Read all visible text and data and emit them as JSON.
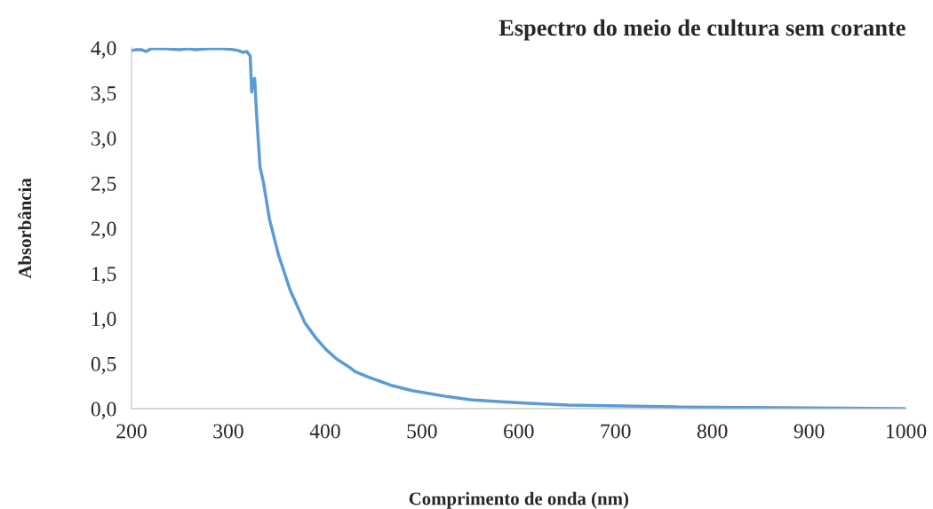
{
  "chart_data": {
    "type": "line",
    "title": "Espectro do meio de cultura sem corante",
    "xlabel": "Comprimento de onda (nm)",
    "ylabel": "Absorbância",
    "series": [
      {
        "color": "#5b9bd5",
        "x": [
          200,
          205,
          210,
          215,
          220,
          235,
          250,
          258,
          265,
          280,
          295,
          305,
          310,
          315,
          319,
          322.6,
          324.1,
          325.5,
          327.2,
          329.4,
          332.7,
          336.4,
          342.5,
          351.7,
          364,
          379.2,
          390,
          400.6,
          412,
          425,
          431,
          445,
          467.9,
          490,
          523,
          550,
          578,
          610,
          651,
          761,
          872,
          1000
        ],
        "values": [
          3.97,
          3.98,
          3.98,
          3.96,
          3.99,
          3.99,
          3.98,
          3.99,
          3.98,
          3.99,
          3.99,
          3.98,
          3.97,
          3.95,
          3.96,
          3.91,
          3.51,
          3.65,
          3.66,
          3.22,
          2.68,
          2.5,
          2.1,
          1.71,
          1.31,
          0.95,
          0.79,
          0.66,
          0.55,
          0.46,
          0.41,
          0.35,
          0.26,
          0.2,
          0.14,
          0.1,
          0.08,
          0.06,
          0.04,
          0.02,
          0.01,
          0.0
        ]
      }
    ],
    "xlim": [
      200,
      1000
    ],
    "xticks": [
      200,
      300,
      400,
      500,
      600,
      700,
      800,
      900,
      1000
    ],
    "ylim": [
      0,
      4
    ],
    "yticks": [
      {
        "value": 0,
        "label": "0,0"
      },
      {
        "value": 0.5,
        "label": "0,5"
      },
      {
        "value": 1,
        "label": "1,0"
      },
      {
        "value": 1.5,
        "label": "1,5"
      },
      {
        "value": 2,
        "label": "2,0"
      },
      {
        "value": 2.5,
        "label": "2,5"
      },
      {
        "value": 3,
        "label": "3,0"
      },
      {
        "value": 3.5,
        "label": "3,5"
      },
      {
        "value": 4,
        "label": "4,0"
      }
    ],
    "grid": false
  }
}
